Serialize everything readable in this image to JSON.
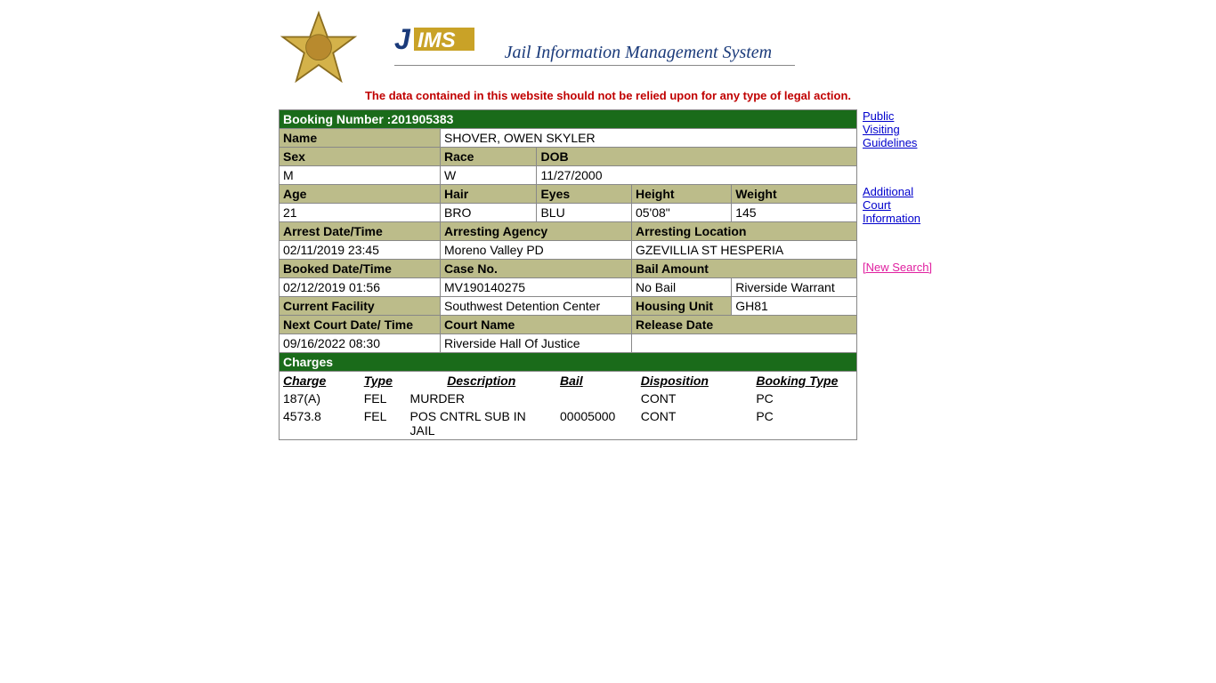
{
  "header": {
    "system_name": "Jail Information Management System",
    "logo_prefix": "J",
    "logo_suffix": "IMS"
  },
  "disclaimer": "The data contained in this website should not be relied upon for any type of legal action.",
  "booking": {
    "booking_number_label": "Booking Number :",
    "booking_number": "201905383",
    "name_label": "Name",
    "name": "SHOVER, OWEN SKYLER",
    "sex_label": "Sex",
    "race_label": "Race",
    "dob_label": "DOB",
    "sex": "M",
    "race": "W",
    "dob": "11/27/2000",
    "age_label": "Age",
    "hair_label": "Hair",
    "eyes_label": "Eyes",
    "height_label": "Height",
    "weight_label": "Weight",
    "age": "21",
    "hair": "BRO",
    "eyes": "BLU",
    "height": "05'08\"",
    "weight": "145",
    "arrest_dt_label": "Arrest Date/Time",
    "arresting_agency_label": "Arresting Agency",
    "arresting_location_label": "Arresting Location",
    "arrest_dt": "02/11/2019 23:45",
    "arresting_agency": "Moreno Valley PD",
    "arresting_location": "GZEVILLIA ST HESPERIA",
    "booked_dt_label": "Booked Date/Time",
    "case_no_label": "Case No.",
    "bail_amount_label": "Bail Amount",
    "booked_dt": "02/12/2019 01:56",
    "case_no": "MV190140275",
    "bail_amount": "No Bail",
    "bail_note": "Riverside Warrant",
    "current_facility_label": "Current Facility",
    "current_facility": "Southwest Detention Center",
    "housing_unit_label": "Housing Unit",
    "housing_unit": "GH81",
    "next_court_dt_label": "Next Court Date/ Time",
    "court_name_label": "Court Name",
    "release_date_label": "Release Date",
    "next_court_dt": "09/16/2022 08:30",
    "court_name": "Riverside Hall Of Justice",
    "release_date": "",
    "charges_label": "Charges"
  },
  "charges": {
    "headers": {
      "charge": "Charge",
      "type": "Type",
      "description": "Description",
      "bail": "Bail",
      "disposition": "Disposition",
      "booking_type": "Booking Type"
    },
    "rows": [
      {
        "charge": "187(A)",
        "type": "FEL",
        "description": "MURDER",
        "bail": "",
        "disposition": "CONT",
        "booking_type": "PC"
      },
      {
        "charge": "4573.8",
        "type": "FEL",
        "description": "POS CNTRL SUB IN JAIL",
        "bail": "00005000",
        "disposition": "CONT",
        "booking_type": "PC"
      }
    ]
  },
  "links": {
    "visiting": "Public Visiting Guidelines",
    "court_info": "Additional Court Information",
    "new_search": "[New Search]"
  },
  "colors": {
    "header_dark": "#1a6b1a",
    "header_olive": "#bcbc8a",
    "disclaimer": "#c00000",
    "link": "#0000cc",
    "visited": "#551a8b",
    "new_search": "#e020a0"
  }
}
